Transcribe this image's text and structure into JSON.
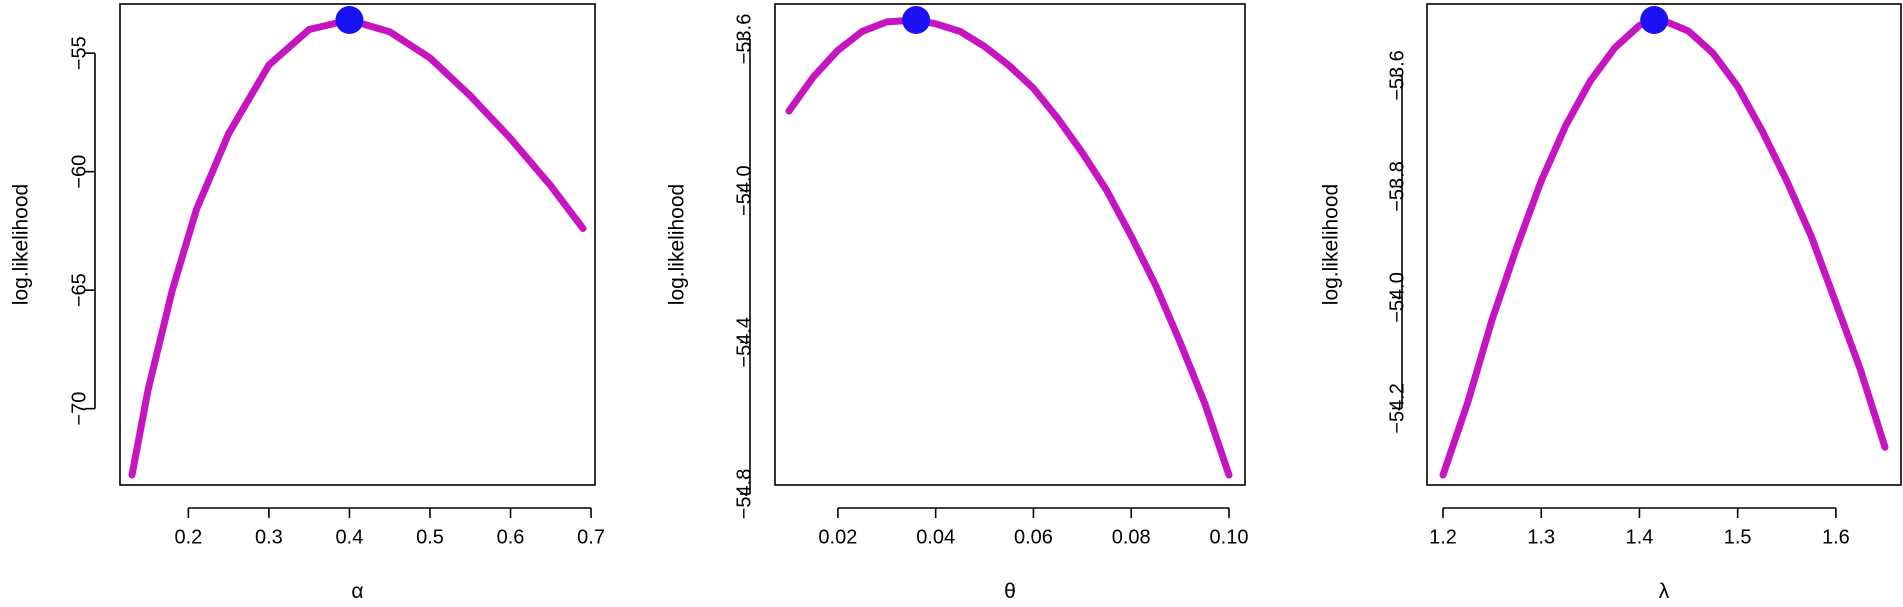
{
  "chart_data": [
    {
      "type": "line",
      "xlabel": "α",
      "ylabel": "log.likelihood",
      "xlim": [
        0.13,
        0.69
      ],
      "ylim": [
        -72.8,
        -53.6
      ],
      "xticks": [
        0.2,
        0.3,
        0.4,
        0.5,
        0.6,
        0.7
      ],
      "xtick_labels": [
        "0.2",
        "0.3",
        "0.4",
        "0.5",
        "0.6",
        "0.7"
      ],
      "yticks": [
        -55,
        -60,
        -65,
        -70
      ],
      "ytick_labels": [
        "−55",
        "−60",
        "−65",
        "−70"
      ],
      "x": [
        0.13,
        0.15,
        0.18,
        0.21,
        0.25,
        0.3,
        0.35,
        0.4,
        0.45,
        0.5,
        0.55,
        0.6,
        0.65,
        0.69
      ],
      "y": [
        -72.8,
        -69.2,
        -65.0,
        -61.6,
        -58.4,
        -55.5,
        -54.0,
        -53.6,
        -54.1,
        -55.2,
        -56.8,
        -58.6,
        -60.6,
        -62.4
      ],
      "max_point": {
        "x": 0.4,
        "y": -53.6
      },
      "line_color": "#c514c0",
      "point_color": "#1a12f2"
    },
    {
      "type": "line",
      "xlabel": "θ",
      "ylabel": "log.likelihood",
      "xlim": [
        0.01,
        0.1
      ],
      "ylim": [
        -54.75,
        -53.55
      ],
      "xticks": [
        0.02,
        0.04,
        0.06,
        0.08,
        0.1
      ],
      "xtick_labels": [
        "0.02",
        "0.04",
        "0.06",
        "0.08",
        "0.10"
      ],
      "yticks": [
        -53.6,
        -54.0,
        -54.4,
        -54.8
      ],
      "ytick_labels": [
        "−53.6",
        "−54.0",
        "−54.4",
        "−54.8"
      ],
      "x": [
        0.01,
        0.015,
        0.02,
        0.025,
        0.03,
        0.036,
        0.04,
        0.045,
        0.05,
        0.055,
        0.06,
        0.065,
        0.07,
        0.075,
        0.08,
        0.085,
        0.09,
        0.095,
        0.1
      ],
      "y": [
        -53.79,
        -53.7,
        -53.63,
        -53.58,
        -53.555,
        -53.55,
        -53.56,
        -53.58,
        -53.62,
        -53.67,
        -53.73,
        -53.81,
        -53.9,
        -54.0,
        -54.12,
        -54.25,
        -54.4,
        -54.56,
        -54.75
      ],
      "max_point": {
        "x": 0.036,
        "y": -53.55
      },
      "line_color": "#c514c0",
      "point_color": "#1a12f2"
    },
    {
      "type": "line",
      "xlabel": "λ",
      "ylabel": "log.likelihood",
      "xlim": [
        1.2,
        1.65
      ],
      "ylim": [
        -54.32,
        -53.5
      ],
      "xticks": [
        1.2,
        1.3,
        1.4,
        1.5,
        1.6
      ],
      "xtick_labels": [
        "1.2",
        "1.3",
        "1.4",
        "1.5",
        "1.6"
      ],
      "yticks": [
        -53.6,
        -53.8,
        -54.0,
        -54.2
      ],
      "ytick_labels": [
        "−53.6",
        "−53.8",
        "−54.0",
        "−54.2"
      ],
      "x": [
        1.2,
        1.225,
        1.25,
        1.275,
        1.3,
        1.325,
        1.35,
        1.375,
        1.4,
        1.415,
        1.43,
        1.45,
        1.475,
        1.5,
        1.525,
        1.55,
        1.575,
        1.6,
        1.625,
        1.65
      ],
      "y": [
        -54.32,
        -54.19,
        -54.04,
        -53.91,
        -53.79,
        -53.69,
        -53.61,
        -53.55,
        -53.51,
        -53.5,
        -53.505,
        -53.52,
        -53.56,
        -53.62,
        -53.7,
        -53.79,
        -53.89,
        -54.01,
        -54.13,
        -54.27
      ],
      "max_point": {
        "x": 1.415,
        "y": -53.5
      },
      "line_color": "#c514c0",
      "point_color": "#1a12f2"
    }
  ]
}
